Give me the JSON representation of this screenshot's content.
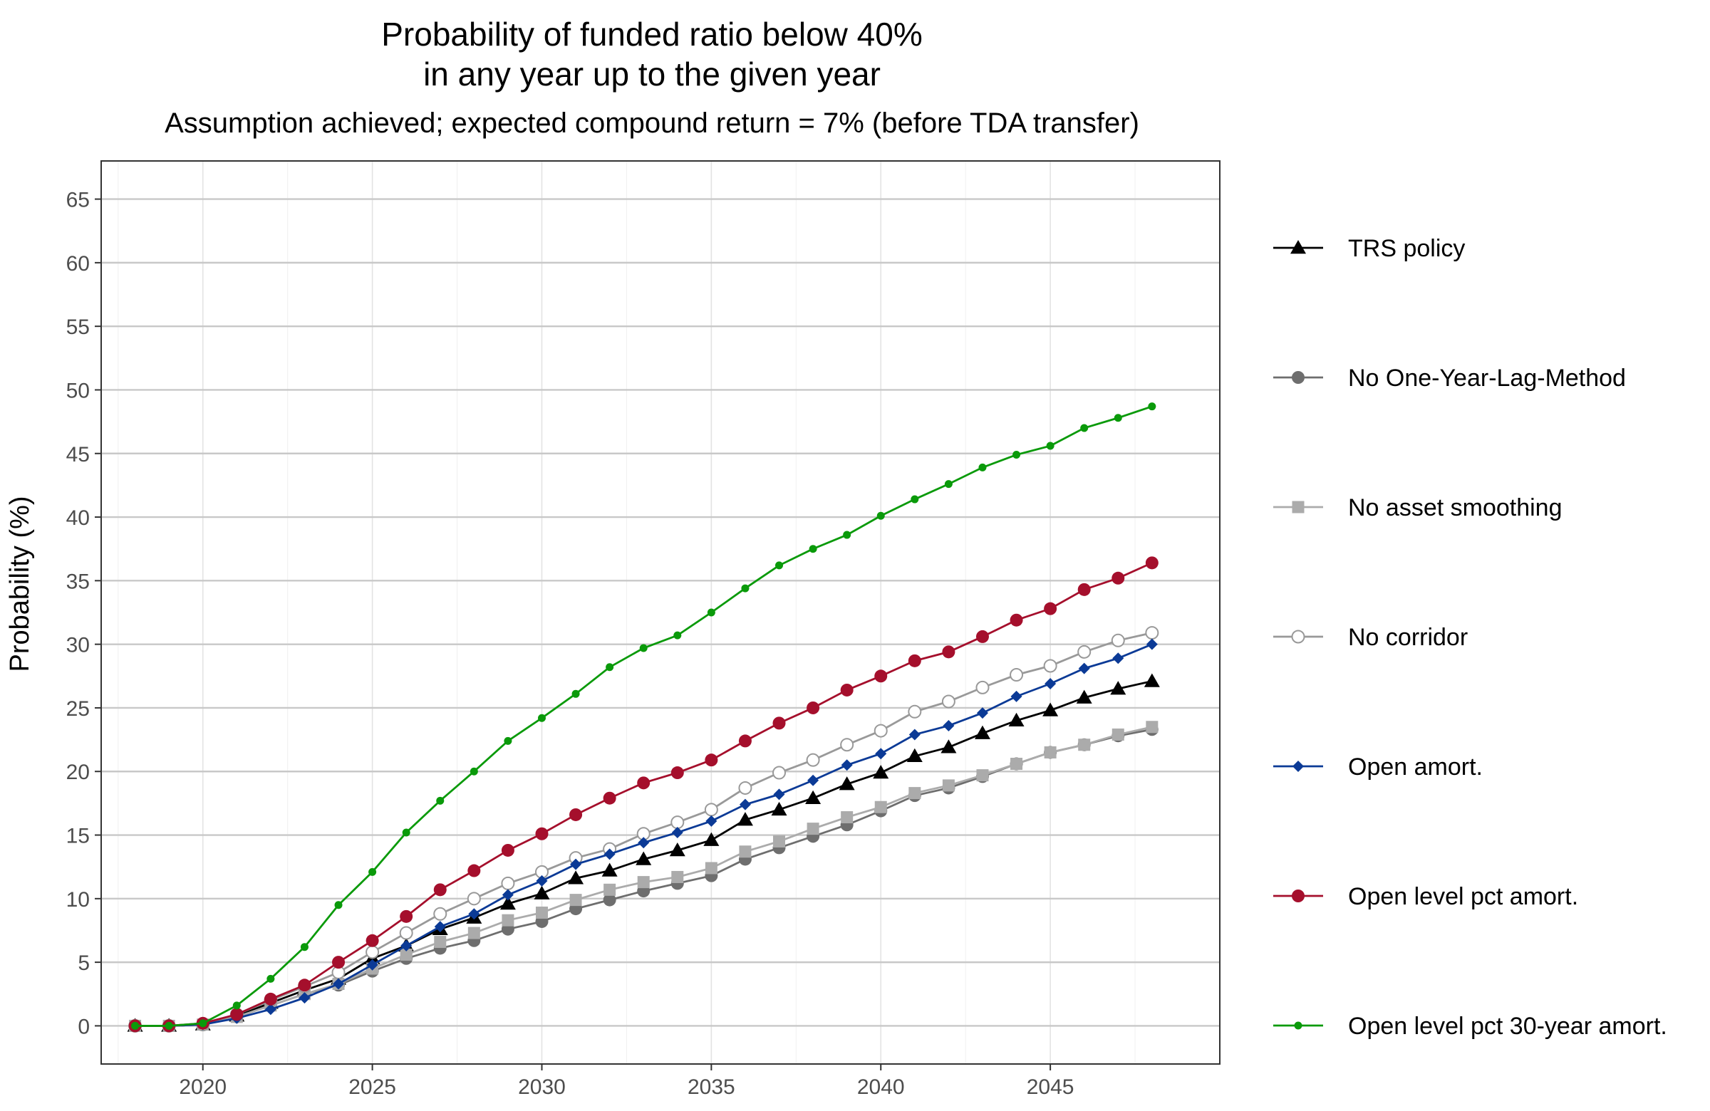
{
  "chart_data": {
    "type": "line",
    "title_line1": "Probability of funded ratio below 40%",
    "title_line2": "in any year up to the given year",
    "subtitle": "Assumption achieved; expected compound return = 7% (before TDA transfer)",
    "xlabel": "",
    "ylabel": "Probability (%)",
    "xlim": [
      2017,
      2050
    ],
    "ylim": [
      -3,
      68
    ],
    "x_ticks": [
      2020,
      2025,
      2030,
      2035,
      2040,
      2045
    ],
    "y_ticks": [
      0,
      5,
      10,
      15,
      20,
      25,
      30,
      35,
      40,
      45,
      50,
      55,
      60,
      65
    ],
    "grid": true,
    "legend_position": "right",
    "x": [
      2018,
      2019,
      2020,
      2021,
      2022,
      2023,
      2024,
      2025,
      2026,
      2027,
      2028,
      2029,
      2030,
      2031,
      2032,
      2033,
      2034,
      2035,
      2036,
      2037,
      2038,
      2039,
      2040,
      2041,
      2042,
      2043,
      2044,
      2045,
      2046,
      2047,
      2048
    ],
    "series": [
      {
        "name": "TRS policy",
        "color": "#000000",
        "marker": "triangle",
        "values": [
          0,
          0,
          0.1,
          0.8,
          1.8,
          2.8,
          3.7,
          5.3,
          6.3,
          7.6,
          8.5,
          9.6,
          10.4,
          11.6,
          12.2,
          13.1,
          13.8,
          14.6,
          16.2,
          17.0,
          17.9,
          19.0,
          19.9,
          21.2,
          21.9,
          23.0,
          24.0,
          24.8,
          25.8,
          26.5,
          27.1
        ]
      },
      {
        "name": "No One-Year-Lag-Method",
        "color": "#6e6e6e",
        "marker": "circle",
        "values": [
          0,
          0,
          0.1,
          0.7,
          1.6,
          2.5,
          3.2,
          4.3,
          5.3,
          6.1,
          6.7,
          7.6,
          8.2,
          9.2,
          9.9,
          10.6,
          11.2,
          11.8,
          13.1,
          14.0,
          14.9,
          15.8,
          16.9,
          18.1,
          18.7,
          19.6,
          20.6,
          21.5,
          22.1,
          22.8,
          23.3
        ]
      },
      {
        "name": "No asset smoothing",
        "color": "#ababab",
        "marker": "square",
        "values": [
          0,
          0,
          0.1,
          0.7,
          1.6,
          2.5,
          3.3,
          4.5,
          5.6,
          6.6,
          7.3,
          8.3,
          8.9,
          9.9,
          10.7,
          11.3,
          11.7,
          12.4,
          13.7,
          14.5,
          15.5,
          16.4,
          17.2,
          18.3,
          18.9,
          19.7,
          20.6,
          21.5,
          22.1,
          22.9,
          23.5
        ]
      },
      {
        "name": "No corridor",
        "color": "#999999",
        "marker": "open-circle",
        "values": [
          0,
          0,
          0.1,
          0.9,
          2.0,
          3.1,
          4.2,
          5.8,
          7.3,
          8.8,
          10.0,
          11.2,
          12.1,
          13.2,
          13.9,
          15.1,
          16.0,
          17.0,
          18.7,
          19.9,
          20.9,
          22.1,
          23.2,
          24.7,
          25.5,
          26.6,
          27.6,
          28.3,
          29.4,
          30.3,
          30.9
        ]
      },
      {
        "name": "Open amort.",
        "color": "#0b3a96",
        "marker": "diamond",
        "values": [
          0,
          0,
          0.1,
          0.6,
          1.3,
          2.2,
          3.3,
          4.8,
          6.3,
          7.8,
          8.8,
          10.3,
          11.4,
          12.7,
          13.5,
          14.4,
          15.2,
          16.1,
          17.4,
          18.2,
          19.3,
          20.5,
          21.4,
          22.9,
          23.6,
          24.6,
          25.9,
          26.9,
          28.1,
          28.9,
          30.0
        ]
      },
      {
        "name": "Open level pct amort.",
        "color": "#a50f2c",
        "marker": "circle",
        "values": [
          0,
          0,
          0.2,
          0.9,
          2.1,
          3.2,
          5.0,
          6.7,
          8.6,
          10.7,
          12.2,
          13.8,
          15.1,
          16.6,
          17.9,
          19.1,
          19.9,
          20.9,
          22.4,
          23.8,
          25.0,
          26.4,
          27.5,
          28.7,
          29.4,
          30.6,
          31.9,
          32.8,
          34.3,
          35.2,
          36.4
        ]
      },
      {
        "name": "Open level pct 30-year amort.",
        "color": "#0a9a0a",
        "marker": "small-circle",
        "values": [
          0,
          0,
          0.2,
          1.6,
          3.7,
          6.2,
          9.5,
          12.1,
          15.2,
          17.7,
          20.0,
          22.4,
          24.2,
          26.1,
          28.2,
          29.7,
          30.7,
          32.5,
          34.4,
          36.2,
          37.5,
          38.6,
          40.1,
          41.4,
          42.6,
          43.9,
          44.9,
          45.6,
          47.0,
          47.8,
          48.7
        ]
      }
    ]
  }
}
